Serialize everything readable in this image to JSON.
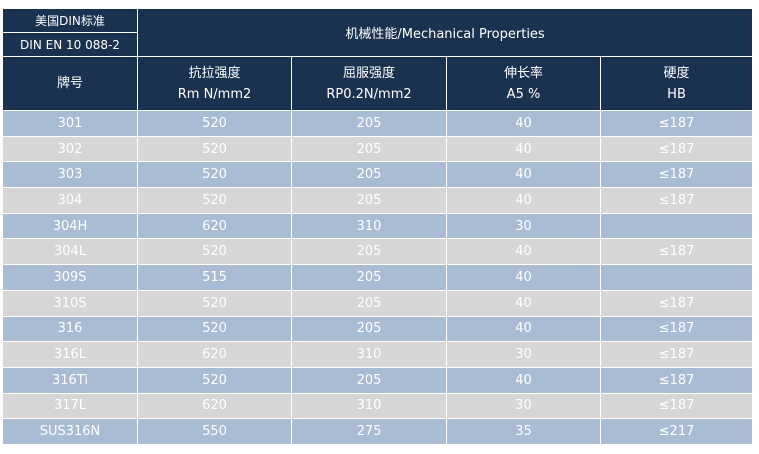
{
  "header": {
    "standard_cn": "美国DIN标准",
    "standard_code": "DIN EN 10 088-2",
    "title": "机械性能/Mechanical Properties"
  },
  "columns": [
    {
      "label": "牌号",
      "unit": ""
    },
    {
      "label": "抗拉强度",
      "unit": "Rm N/mm2"
    },
    {
      "label": "屈服强度",
      "unit": "RP0.2N/mm2"
    },
    {
      "label": "伸长率",
      "unit": "A5 %"
    },
    {
      "label": "硬度",
      "unit": "HB"
    }
  ],
  "rows": [
    [
      "301",
      "520",
      "205",
      "40",
      "≤187"
    ],
    [
      "302",
      "520",
      "205",
      "40",
      "≤187"
    ],
    [
      "303",
      "520",
      "205",
      "40",
      "≤187"
    ],
    [
      "304",
      "520",
      "205",
      "40",
      "≤187"
    ],
    [
      "304H",
      "620",
      "310",
      "30",
      ""
    ],
    [
      "304L",
      "520",
      "205",
      "40",
      "≤187"
    ],
    [
      "309S",
      "515",
      "205",
      "40",
      ""
    ],
    [
      "310S",
      "520",
      "205",
      "40",
      "≤187"
    ],
    [
      "316",
      "520",
      "205",
      "40",
      "≤187"
    ],
    [
      "316L",
      "620",
      "310",
      "30",
      "≤187"
    ],
    [
      "316Ti",
      "520",
      "205",
      "40",
      "≤187"
    ],
    [
      "317L",
      "620",
      "310",
      "30",
      "≤187"
    ],
    [
      "SUS316N",
      "550",
      "275",
      "35",
      "≤217"
    ]
  ]
}
